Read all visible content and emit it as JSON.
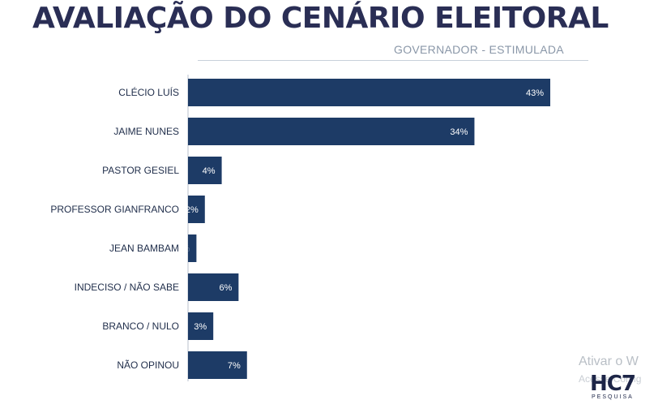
{
  "header": {
    "title": "AVALIAÇÃO DO CENÁRIO ELEITORAL",
    "subtitle": "GOVERNADOR - ESTIMULADA"
  },
  "watermark": {
    "line1": "Ativar o W",
    "line2": "Acesse Config"
  },
  "logo": {
    "name": "HC7",
    "tagline": "PESQUISA"
  },
  "colors": {
    "bar": "#1d3b66",
    "title": "#2a2e55",
    "subtitle": "#8a97a8"
  },
  "chart_data": {
    "type": "bar",
    "orientation": "horizontal",
    "categories": [
      "CLÉCIO LUÍS",
      "JAIME NUNES",
      "PASTOR GESIEL",
      "PROFESSOR GIANFRANCO",
      "JEAN BAMBAM",
      "INDECISO / NÃO SABE",
      "BRANCO / NULO",
      "NÃO OPINOU"
    ],
    "values": [
      43,
      34,
      4,
      2,
      1,
      6,
      3,
      7
    ],
    "labels": [
      "43%",
      "34%",
      "4%",
      "2%",
      "1%",
      "6%",
      "3%",
      "7%"
    ],
    "xlim": [
      0,
      43
    ],
    "grid": false,
    "legend": "none"
  }
}
